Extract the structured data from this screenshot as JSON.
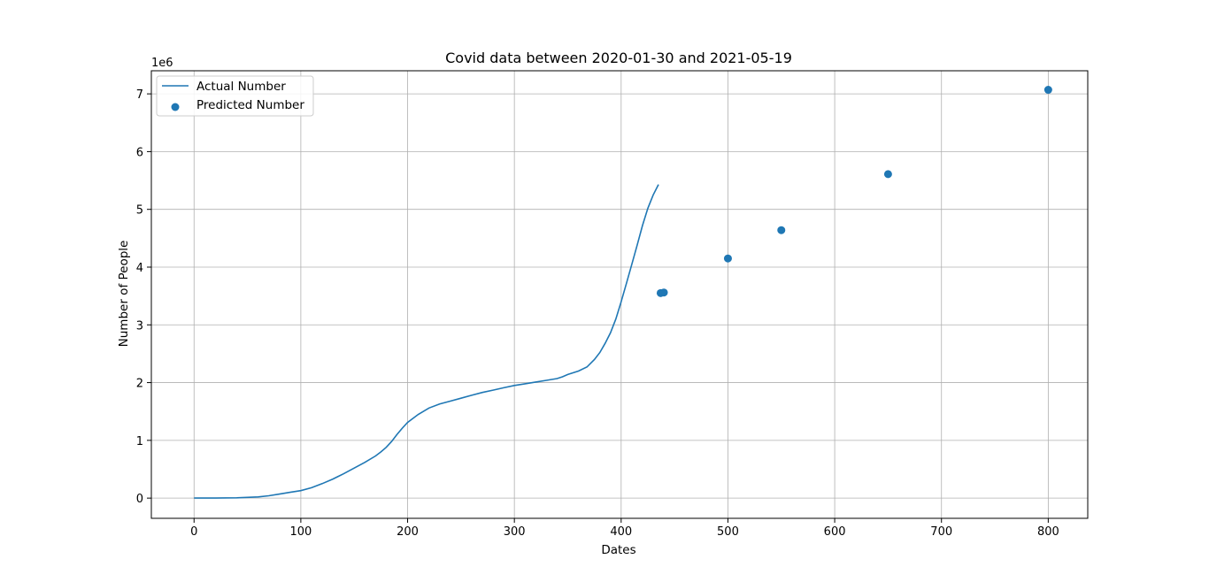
{
  "chart_data": {
    "type": "line",
    "title": "Covid data between 2020-01-30 and 2021-05-19",
    "xlabel": "Dates",
    "ylabel": "Number of People",
    "y_offset_label": "1e6",
    "xlim": [
      -40,
      837
    ],
    "ylim": [
      -0.35,
      7.4
    ],
    "x_ticks": [
      0,
      100,
      200,
      300,
      400,
      500,
      600,
      700,
      800
    ],
    "y_ticks": [
      0,
      1,
      2,
      3,
      4,
      5,
      6,
      7
    ],
    "grid": true,
    "legend_position": "top-left",
    "series": [
      {
        "name": "Actual Number",
        "kind": "line",
        "color": "#1f77b4",
        "x": [
          0,
          20,
          40,
          60,
          70,
          80,
          90,
          100,
          110,
          120,
          130,
          140,
          150,
          160,
          170,
          175,
          180,
          185,
          190,
          195,
          200,
          210,
          220,
          230,
          240,
          250,
          260,
          270,
          280,
          290,
          300,
          310,
          320,
          330,
          340,
          345,
          350,
          360,
          368,
          375,
          380,
          385,
          390,
          395,
          400,
          405,
          410,
          415,
          420,
          425,
          430,
          435
        ],
        "y": [
          0.0,
          0.0,
          0.005,
          0.02,
          0.04,
          0.07,
          0.1,
          0.13,
          0.18,
          0.25,
          0.33,
          0.42,
          0.52,
          0.62,
          0.73,
          0.8,
          0.88,
          0.98,
          1.1,
          1.21,
          1.31,
          1.45,
          1.56,
          1.63,
          1.68,
          1.73,
          1.78,
          1.83,
          1.87,
          1.91,
          1.95,
          1.98,
          2.01,
          2.04,
          2.07,
          2.1,
          2.14,
          2.2,
          2.27,
          2.4,
          2.52,
          2.68,
          2.86,
          3.1,
          3.4,
          3.72,
          4.05,
          4.38,
          4.72,
          5.02,
          5.25,
          5.43
        ]
      },
      {
        "name": "Predicted Number",
        "kind": "scatter",
        "color": "#1f77b4",
        "x": [
          437,
          440,
          500,
          550,
          650,
          800
        ],
        "y": [
          3.55,
          3.56,
          4.15,
          4.64,
          5.61,
          7.07
        ]
      }
    ]
  }
}
